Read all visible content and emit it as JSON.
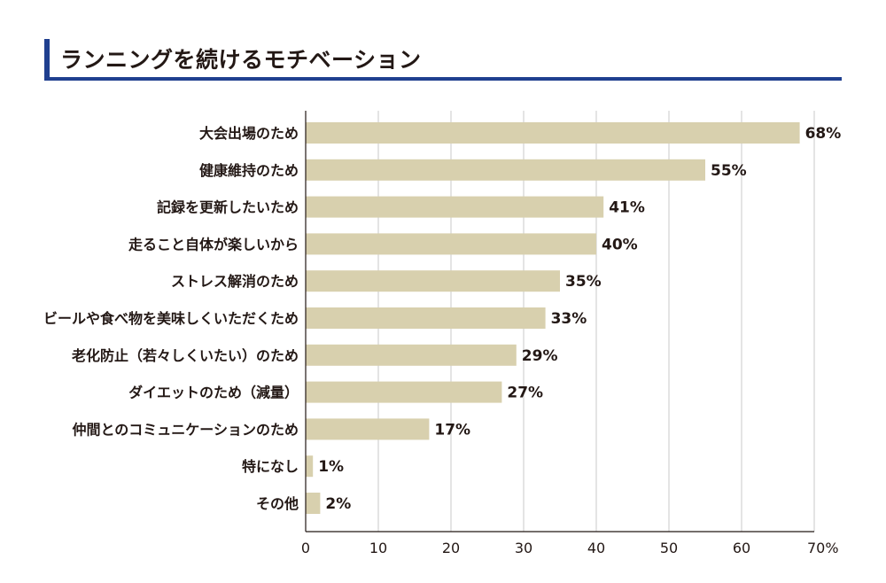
{
  "chart_data": {
    "type": "bar",
    "orientation": "horizontal",
    "title": "ランニングを続けるモチベーション",
    "categories": [
      "大会出場のため",
      "健康維持のため",
      "記録を更新したいため",
      "走ること自体が楽しいから",
      "ストレス解消のため",
      "ビールや食べ物を美味しくいただくため",
      "老化防止（若々しくいたい）のため",
      "ダイエットのため（減量）",
      "仲間とのコミュニケーションのため",
      "特になし",
      "その他"
    ],
    "values": [
      68,
      55,
      41,
      40,
      35,
      33,
      29,
      27,
      17,
      1,
      2
    ],
    "value_labels": [
      "68%",
      "55%",
      "41%",
      "40%",
      "35%",
      "33%",
      "29%",
      "27%",
      "17%",
      "1%",
      "2%"
    ],
    "xlim": [
      0,
      70
    ],
    "xticks": [
      "0",
      "10",
      "20",
      "30",
      "40",
      "50",
      "60",
      "70%"
    ],
    "grid": true,
    "bar_color": "#d8d0ae",
    "accent_color": "#1f3f8f"
  }
}
